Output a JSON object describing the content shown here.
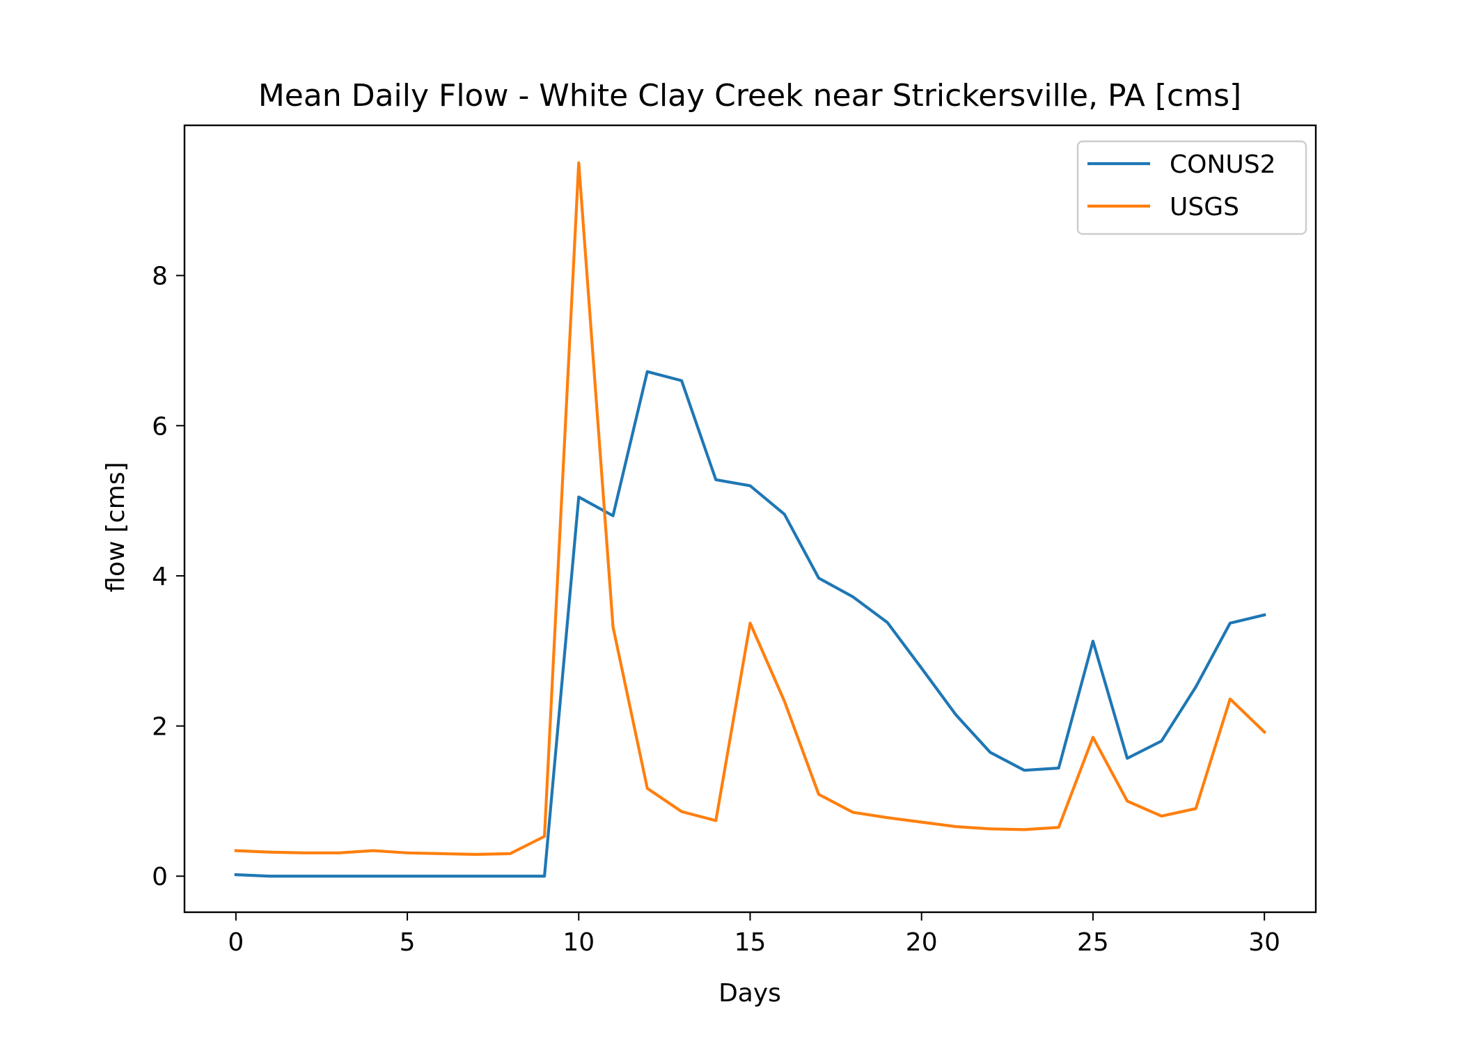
{
  "chart_data": {
    "type": "line",
    "title": "Mean Daily Flow - White Clay Creek near Strickersville, PA [cms]",
    "xlabel": "Days",
    "ylabel": "flow [cms]",
    "xlim": [
      -1.5,
      31.5
    ],
    "ylim": [
      -0.48,
      10.0
    ],
    "xticks": [
      0,
      5,
      10,
      15,
      20,
      25,
      30
    ],
    "yticks": [
      0,
      2,
      4,
      6,
      8
    ],
    "grid": false,
    "legend_position": "top-right",
    "x": [
      0,
      1,
      2,
      3,
      4,
      5,
      6,
      7,
      8,
      9,
      10,
      11,
      12,
      13,
      14,
      15,
      16,
      17,
      18,
      19,
      20,
      21,
      22,
      23,
      24,
      25,
      26,
      27,
      28,
      29,
      30
    ],
    "series": [
      {
        "name": "CONUS2",
        "color": "#1f77b4",
        "values": [
          0.02,
          0.0,
          0.0,
          0.0,
          0.0,
          0.0,
          0.0,
          0.0,
          0.0,
          0.0,
          5.05,
          4.8,
          6.72,
          6.6,
          5.28,
          5.2,
          4.82,
          3.97,
          3.72,
          3.38,
          2.77,
          2.15,
          1.65,
          1.41,
          1.44,
          3.13,
          1.57,
          1.8,
          2.52,
          3.37,
          3.48
        ]
      },
      {
        "name": "USGS",
        "color": "#ff7f0e",
        "values": [
          0.34,
          0.32,
          0.31,
          0.31,
          0.34,
          0.31,
          0.3,
          0.29,
          0.3,
          0.53,
          9.5,
          3.32,
          1.17,
          0.86,
          0.74,
          3.37,
          2.33,
          1.09,
          0.85,
          0.78,
          0.72,
          0.66,
          0.63,
          0.62,
          0.65,
          1.85,
          1.0,
          0.8,
          0.9,
          2.36,
          1.92
        ]
      }
    ]
  }
}
